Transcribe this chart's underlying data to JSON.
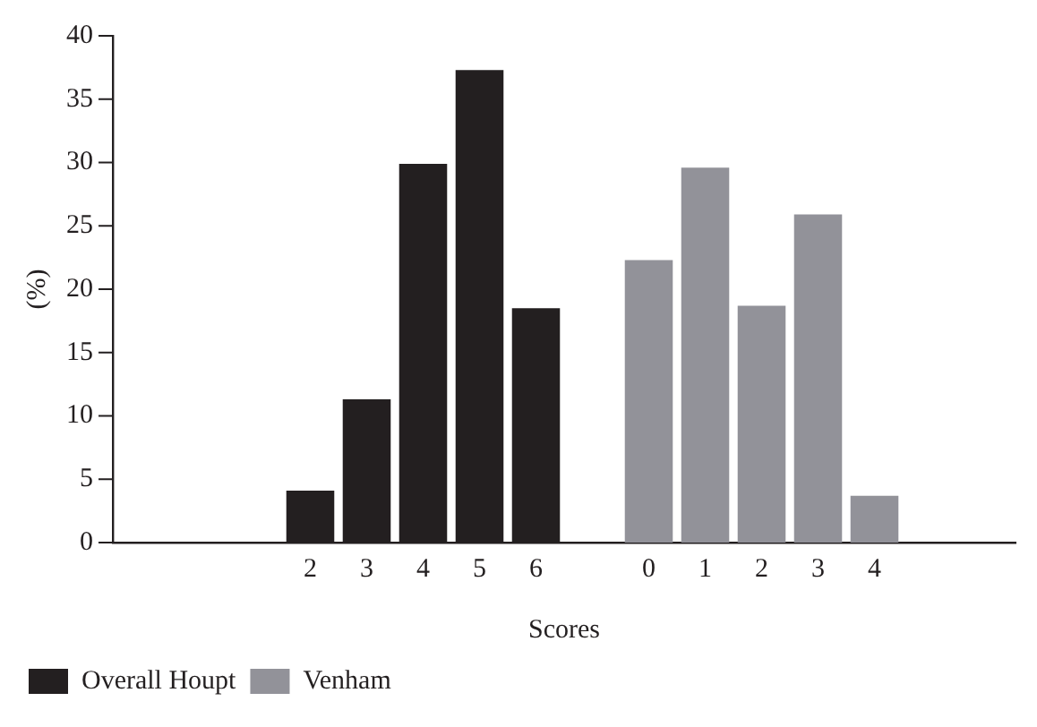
{
  "chart_data": {
    "type": "bar",
    "xlabel": "Scores",
    "ylabel": "(%)",
    "categories": [
      null,
      null,
      null,
      "2",
      "3",
      "4",
      "5",
      "6",
      null,
      "0",
      "1",
      "2",
      "3",
      "4",
      null,
      null
    ],
    "series": [
      {
        "name": "Overall Houpt",
        "color": "#231f20",
        "values": [
          null,
          null,
          null,
          4.1,
          11.3,
          29.9,
          37.3,
          18.5,
          null,
          null,
          null,
          null,
          null,
          null,
          null,
          null
        ]
      },
      {
        "name": "Venham",
        "color": "#929299",
        "values": [
          null,
          null,
          null,
          null,
          null,
          null,
          null,
          null,
          null,
          22.3,
          29.6,
          18.7,
          25.9,
          3.7,
          null,
          null
        ]
      }
    ],
    "ylim": [
      0,
      40
    ],
    "yticks": [
      0,
      5,
      10,
      15,
      20,
      25,
      30,
      35,
      40
    ],
    "grid": false,
    "legend": "bottom left"
  }
}
